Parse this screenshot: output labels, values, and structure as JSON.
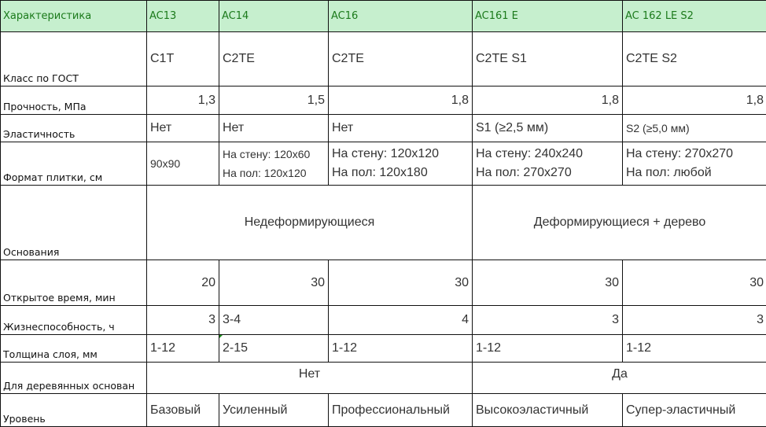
{
  "header": [
    "Характеристика",
    "AC13",
    "AC14",
    "AC16",
    "AC161 E",
    "AC 162 LE S2"
  ],
  "rows": {
    "gost": {
      "label": "Класс по ГОСТ",
      "values": [
        "C1T",
        "C2TE",
        "C2TE",
        "C2TE S1",
        "C2TE S2"
      ]
    },
    "strength": {
      "label": "Прочность, МПа",
      "values": [
        "1,3",
        "1,5",
        "1,8",
        "1,8",
        "1,8"
      ]
    },
    "elasticity": {
      "label": "Эластичность",
      "values": [
        "Нет",
        "Нет",
        "Нет",
        "S1 (≥2,5 мм)",
        "S2 (≥5,0 мм)"
      ]
    },
    "format": {
      "label": "Формат плитки, см",
      "values": [
        [
          "90x90"
        ],
        [
          "На стену: 120x60",
          "На пол: 120x120"
        ],
        [
          "На стену: 120x120",
          "На пол: 120x180"
        ],
        [
          "На стену: 240x240",
          "На пол: 270x270"
        ],
        [
          "На стену: 270x270",
          "На пол: любой"
        ]
      ]
    },
    "base": {
      "label": "Основания",
      "values": [
        "Недеформирующиеся",
        "Деформирующиеся + дерево"
      ]
    },
    "open_time": {
      "label": "Открытое время, мин",
      "values": [
        "20",
        "30",
        "30",
        "30",
        "30"
      ]
    },
    "pot_life": {
      "label": "Жизнеспособность, ч",
      "values": [
        "3",
        "3-4",
        "4",
        "3",
        "3"
      ]
    },
    "thickness": {
      "label": "Толщина слоя, мм",
      "values": [
        "1-12",
        "2-15",
        "1-12",
        "1-12",
        "1-12"
      ]
    },
    "wood": {
      "label": "Для деревянных основан",
      "values": [
        "Нет",
        "Да"
      ]
    },
    "level": {
      "label": "Уровень",
      "values": [
        "Базовый",
        "Усиленный",
        "Профессиональный",
        "Высокоэластичный",
        "Супер-эластичный"
      ]
    }
  },
  "colors": {
    "header_bg": "#c6efce",
    "header_text": "#1b7a1b",
    "comment_marker": "#1a8a1a"
  }
}
